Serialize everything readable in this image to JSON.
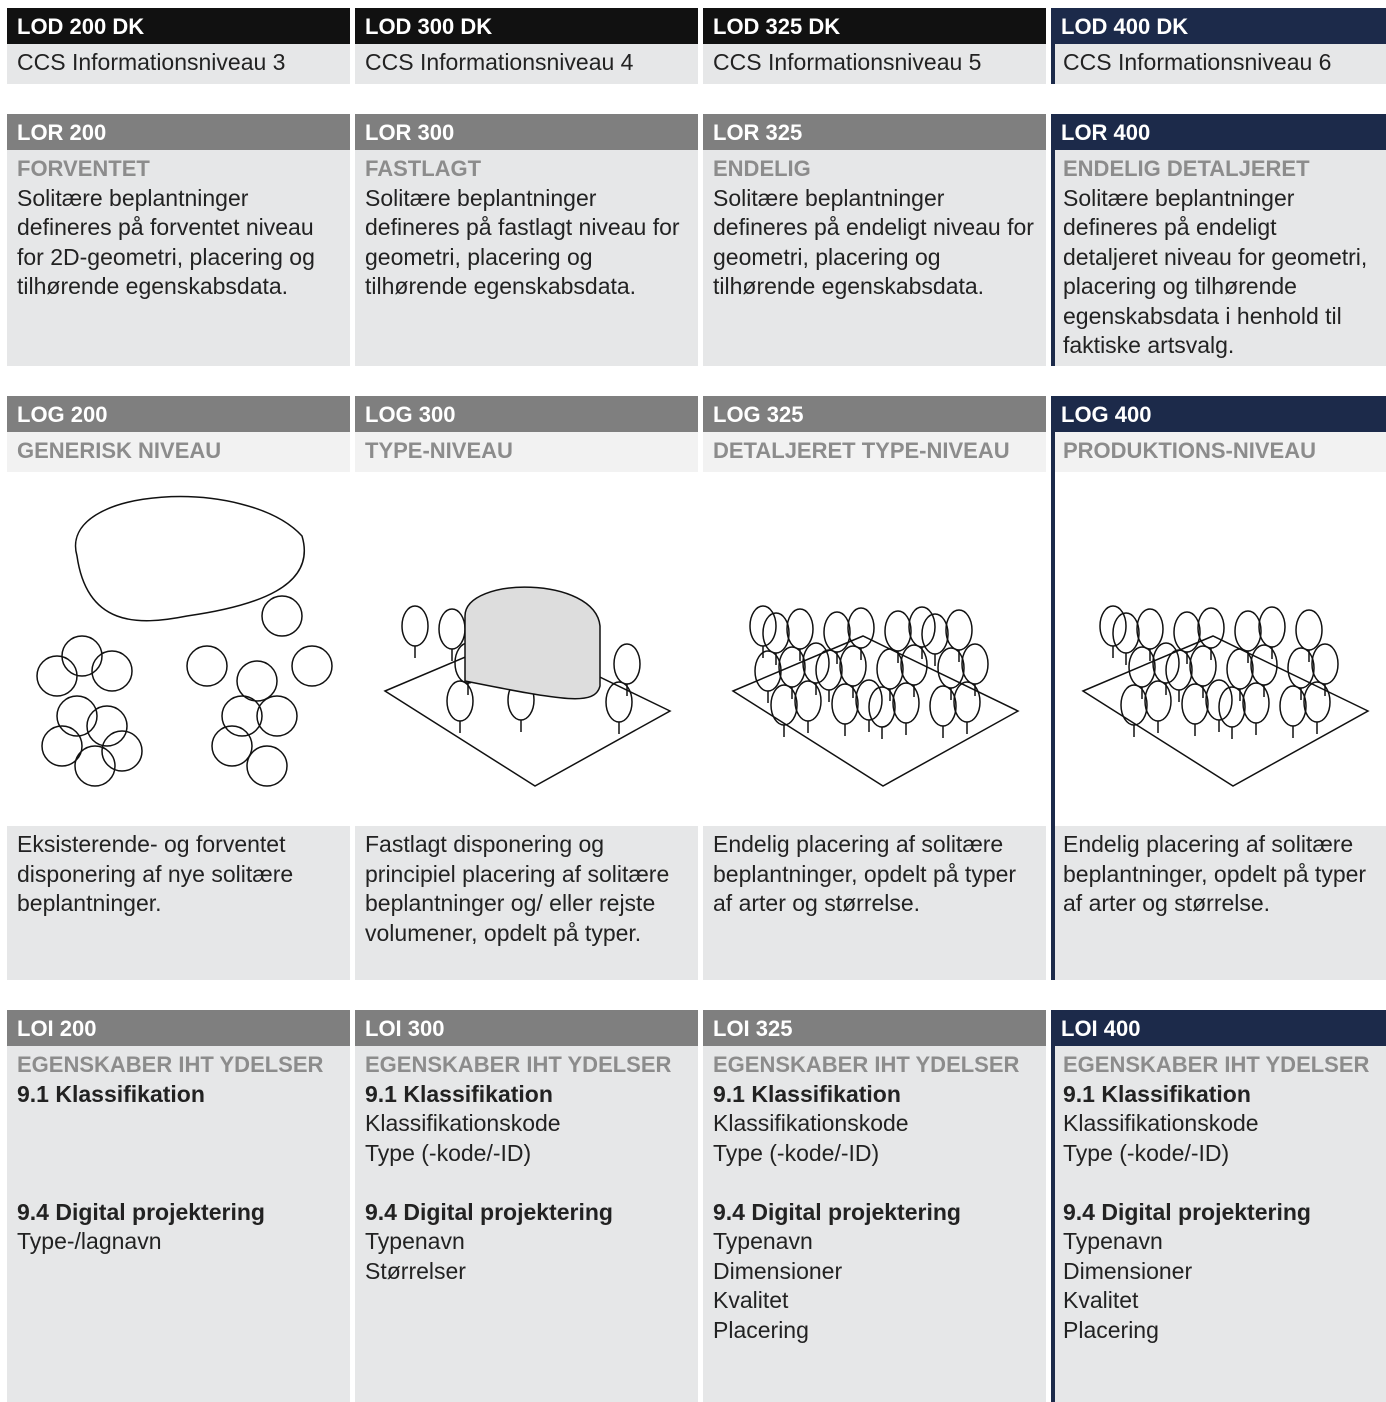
{
  "lod": [
    {
      "header": "LOD 200 DK",
      "text": "CCS Informationsniveau 3"
    },
    {
      "header": "LOD 300 DK",
      "text": "CCS Informationsniveau 4"
    },
    {
      "header": "LOD 325 DK",
      "text": "CCS Informationsniveau 5"
    },
    {
      "header": "LOD 400 DK",
      "text": "CCS Informationsniveau 6"
    }
  ],
  "lor": [
    {
      "header": "LOR 200",
      "subtitle": "FORVENTET",
      "text": "Solitære beplantninger defineres på forventet niveau for 2D-geometri, placering og tilhørende egenskabsdata."
    },
    {
      "header": "LOR 300",
      "subtitle": "FASTLAGT",
      "text": "Solitære beplantninger defineres på fastlagt niveau for geometri, placering og tilhørende egenskabsdata."
    },
    {
      "header": "LOR 325",
      "subtitle": "ENDELIG",
      "text": "Solitære beplantninger defineres på endeligt niveau for geometri, placering og tilhørende egenskabsdata."
    },
    {
      "header": "LOR 400",
      "subtitle": "ENDELIG DETALJERET",
      "text": "Solitære beplantninger defineres på endeligt detaljeret niveau for geometri, placering og tilhørende egenskabsdata i henhold til faktiske artsvalg."
    }
  ],
  "log": [
    {
      "header": "LOG 200",
      "subtitle": "GENERISK NIVEAU",
      "caption": "Eksisterende- og forventet disponering af nye solitære beplantninger."
    },
    {
      "header": "LOG 300",
      "subtitle": "TYPE-NIVEAU",
      "caption": "Fastlagt disponering og principiel placering af solitære beplantninger og/ eller rejste volumener, opdelt på typer."
    },
    {
      "header": "LOG 325",
      "subtitle": "DETALJERET TYPE-NIVEAU",
      "caption": "Endelig placering af solitære beplantninger, opdelt på typer af arter og størrelse."
    },
    {
      "header": "LOG 400",
      "subtitle": "PRODUKTIONS-NIVEAU",
      "caption": "Endelig placering af solitære beplantninger, opdelt på typer af arter og størrelse."
    }
  ],
  "loi": [
    {
      "header": "LOI 200",
      "subtitle": "EGENSKABER IHT YDELSER",
      "groups": [
        {
          "heading": "9.1 Klassifikation",
          "items": []
        },
        {
          "heading": "9.4 Digital projektering",
          "items": [
            "Type-/lagnavn"
          ]
        }
      ]
    },
    {
      "header": "LOI 300",
      "subtitle": "EGENSKABER IHT YDELSER",
      "groups": [
        {
          "heading": "9.1 Klassifikation",
          "items": [
            "Klassifikationskode",
            "Type (-kode/-ID)"
          ]
        },
        {
          "heading": "9.4 Digital projektering",
          "items": [
            "Typenavn",
            "Størrelser"
          ]
        }
      ]
    },
    {
      "header": "LOI 325",
      "subtitle": "EGENSKABER IHT YDELSER",
      "groups": [
        {
          "heading": "9.1 Klassifikation",
          "items": [
            "Klassifikationskode",
            "Type (-kode/-ID)"
          ]
        },
        {
          "heading": "9.4 Digital projektering",
          "items": [
            "Typenavn",
            "Dimensioner",
            "Kvalitet",
            "Placering"
          ]
        }
      ]
    },
    {
      "header": "LOI 400",
      "subtitle": "EGENSKABER IHT YDELSER",
      "groups": [
        {
          "heading": "9.1 Klassifikation",
          "items": [
            "Klassifikationskode",
            "Type (-kode/-ID)"
          ]
        },
        {
          "heading": "9.4 Digital projektering",
          "items": [
            "Typenavn",
            "Dimensioner",
            "Kvalitet",
            "Placering"
          ]
        }
      ]
    }
  ]
}
